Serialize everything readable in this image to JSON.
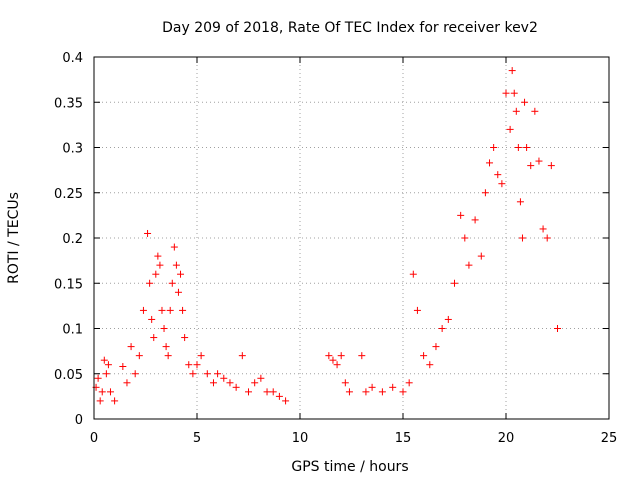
{
  "chart_data": {
    "type": "scatter",
    "title": "Day 209 of 2018, Rate Of TEC Index for receiver kev2",
    "xlabel": "GPS time / hours",
    "ylabel": "ROTI / TECUs",
    "xlim": [
      0,
      25
    ],
    "ylim": [
      0,
      0.4
    ],
    "x_ticks": [
      "0",
      "5",
      "10",
      "15",
      "20",
      "25"
    ],
    "y_ticks": [
      "0",
      "0.05",
      "0.1",
      "0.15",
      "0.2",
      "0.25",
      "0.3",
      "0.35",
      "0.4"
    ],
    "grid": true,
    "legend": "none",
    "marker": "+",
    "color": "#ff0000",
    "series": [
      {
        "x": [
          0.1,
          0.2,
          0.3,
          0.4,
          0.5,
          0.6,
          0.7,
          0.8,
          1.0,
          1.4,
          1.6,
          1.8,
          2.0,
          2.2,
          2.4,
          2.6,
          2.7,
          2.8,
          2.9,
          3.0,
          3.1,
          3.2,
          3.3,
          3.4,
          3.5,
          3.6,
          3.7,
          3.8,
          3.9,
          4.0,
          4.1,
          4.2,
          4.3,
          4.4,
          4.6,
          4.8,
          5.0,
          5.2,
          5.5,
          5.8,
          6.0,
          6.3,
          6.6,
          6.9,
          7.2,
          7.5,
          7.8,
          8.1,
          8.4,
          8.7,
          9.0,
          9.3,
          11.4,
          11.6,
          11.8,
          12.0,
          12.2,
          12.4,
          13.0,
          13.2,
          13.5,
          14.0,
          14.5,
          15.0,
          15.3,
          15.5,
          15.7,
          16.0,
          16.3,
          16.6,
          16.9,
          17.2,
          17.5,
          17.8,
          18.0,
          18.2,
          18.5,
          18.8,
          19.0,
          19.2,
          19.4,
          19.6,
          19.8,
          20.0,
          20.2,
          20.3,
          20.4,
          20.5,
          20.6,
          20.7,
          20.8,
          20.9,
          21.0,
          21.2,
          21.4,
          21.6,
          21.8,
          22.0,
          22.2,
          22.5
        ],
        "y": [
          0.035,
          0.045,
          0.02,
          0.03,
          0.065,
          0.05,
          0.06,
          0.03,
          0.02,
          0.058,
          0.04,
          0.08,
          0.05,
          0.07,
          0.12,
          0.205,
          0.15,
          0.11,
          0.09,
          0.16,
          0.18,
          0.17,
          0.12,
          0.1,
          0.08,
          0.07,
          0.12,
          0.15,
          0.19,
          0.17,
          0.14,
          0.16,
          0.12,
          0.09,
          0.06,
          0.05,
          0.06,
          0.07,
          0.05,
          0.04,
          0.05,
          0.045,
          0.04,
          0.035,
          0.07,
          0.03,
          0.04,
          0.045,
          0.03,
          0.03,
          0.025,
          0.02,
          0.07,
          0.065,
          0.06,
          0.07,
          0.04,
          0.03,
          0.07,
          0.03,
          0.035,
          0.03,
          0.035,
          0.03,
          0.04,
          0.16,
          0.12,
          0.07,
          0.06,
          0.08,
          0.1,
          0.11,
          0.15,
          0.225,
          0.2,
          0.17,
          0.22,
          0.18,
          0.25,
          0.283,
          0.3,
          0.27,
          0.26,
          0.36,
          0.32,
          0.385,
          0.36,
          0.34,
          0.3,
          0.24,
          0.2,
          0.35,
          0.3,
          0.28,
          0.34,
          0.285,
          0.21,
          0.2,
          0.28,
          0.1
        ]
      }
    ]
  }
}
